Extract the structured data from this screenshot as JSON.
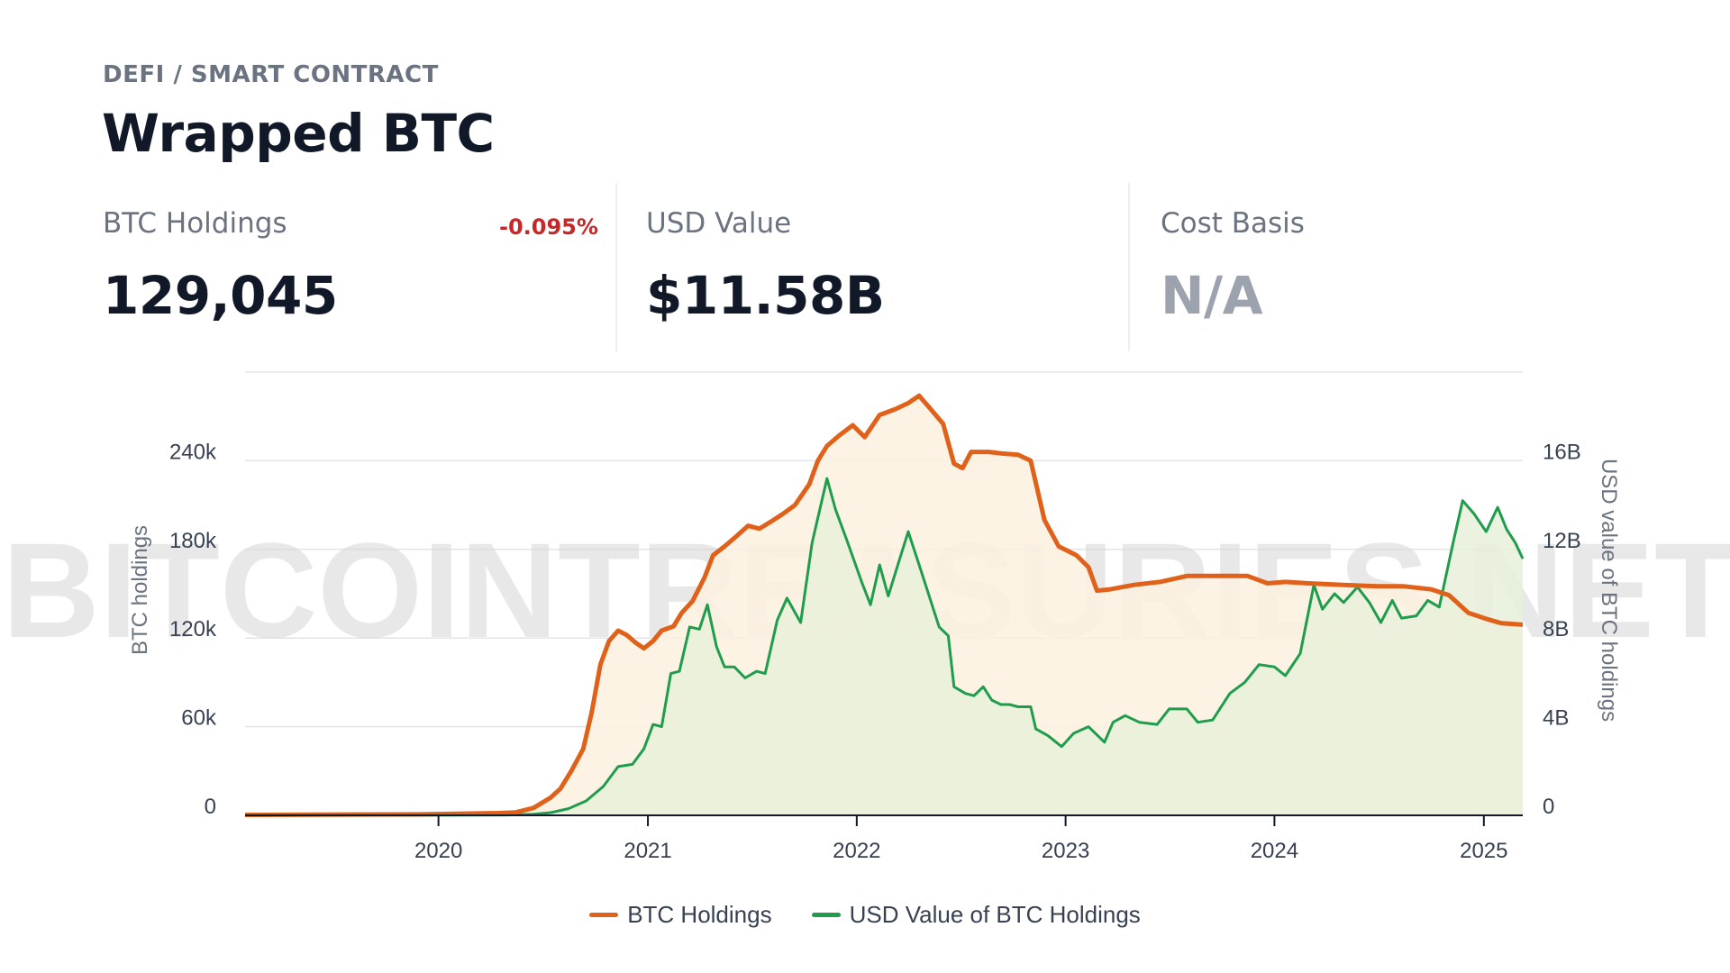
{
  "header": {
    "category": "DEFI / SMART CONTRACT",
    "title": "Wrapped BTC"
  },
  "stats": [
    {
      "label": "BTC Holdings",
      "value": "129,045",
      "change": "-0.095%",
      "change_color": "#c62828"
    },
    {
      "label": "USD Value",
      "value": "$11.58B"
    },
    {
      "label": "Cost Basis",
      "value": "N/A",
      "value_color": "#9ca3af"
    }
  ],
  "watermark": "BITCOINTREASURIES.NET",
  "colors": {
    "btc_line": "#e0611a",
    "btc_fill": "#fdf1df",
    "usd_line": "#1f9d4d",
    "usd_fill": "#e9f0db",
    "grid": "#e2e4e8",
    "axis": "#111827"
  },
  "chart_data": {
    "type": "line",
    "x_range": [
      "2019-01-28",
      "2025-03-10"
    ],
    "x_ticks": [
      "2020-01-01",
      "2021-01-01",
      "2022-01-01",
      "2023-01-01",
      "2024-01-01",
      "2025-01-01"
    ],
    "x_tick_labels": [
      "2020",
      "2021",
      "2022",
      "2023",
      "2024",
      "2025"
    ],
    "y_left": {
      "label": "BTC holdings",
      "ticks": [
        0,
        60000,
        120000,
        180000,
        240000
      ],
      "tick_labels": [
        "0",
        "60k",
        "120k",
        "180k",
        "240k"
      ],
      "range": [
        0,
        300000
      ]
    },
    "y_right": {
      "label": "USD value of BTC holdings",
      "ticks": [
        0,
        4000000000,
        8000000000,
        12000000000,
        16000000000
      ],
      "tick_labels": [
        "0",
        "4B",
        "8B",
        "12B",
        "16B"
      ],
      "range": [
        0,
        20000000000
      ]
    },
    "legend_position": "bottom-center",
    "grid": true,
    "series": [
      {
        "name": "BTC Holdings",
        "axis": "left",
        "color": "#e0611a",
        "points": [
          [
            "2019-01-28",
            300
          ],
          [
            "2019-06-01",
            500
          ],
          [
            "2019-12-01",
            700
          ],
          [
            "2020-04-15",
            1500
          ],
          [
            "2020-05-15",
            2000
          ],
          [
            "2020-06-15",
            5000
          ],
          [
            "2020-07-15",
            12000
          ],
          [
            "2020-08-01",
            18000
          ],
          [
            "2020-08-20",
            30000
          ],
          [
            "2020-09-10",
            45000
          ],
          [
            "2020-09-25",
            70000
          ],
          [
            "2020-10-10",
            102000
          ],
          [
            "2020-10-25",
            118000
          ],
          [
            "2020-11-10",
            125000
          ],
          [
            "2020-11-25",
            122000
          ],
          [
            "2020-12-10",
            117000
          ],
          [
            "2020-12-25",
            113000
          ],
          [
            "2021-01-10",
            118000
          ],
          [
            "2021-01-25",
            125000
          ],
          [
            "2021-02-15",
            128000
          ],
          [
            "2021-03-01",
            137000
          ],
          [
            "2021-03-20",
            145000
          ],
          [
            "2021-04-10",
            161000
          ],
          [
            "2021-04-25",
            176000
          ],
          [
            "2021-05-15",
            182000
          ],
          [
            "2021-06-05",
            189000
          ],
          [
            "2021-06-25",
            196000
          ],
          [
            "2021-07-15",
            194000
          ],
          [
            "2021-08-05",
            199000
          ],
          [
            "2021-08-25",
            204000
          ],
          [
            "2021-09-15",
            210000
          ],
          [
            "2021-10-10",
            224000
          ],
          [
            "2021-10-25",
            240000
          ],
          [
            "2021-11-10",
            250000
          ],
          [
            "2021-12-01",
            257000
          ],
          [
            "2021-12-25",
            264000
          ],
          [
            "2022-01-15",
            256000
          ],
          [
            "2022-02-10",
            271000
          ],
          [
            "2022-03-10",
            275000
          ],
          [
            "2022-04-01",
            279000
          ],
          [
            "2022-04-20",
            284000
          ],
          [
            "2022-05-10",
            275000
          ],
          [
            "2022-06-01",
            265000
          ],
          [
            "2022-06-20",
            238000
          ],
          [
            "2022-07-05",
            235000
          ],
          [
            "2022-07-20",
            246000
          ],
          [
            "2022-08-20",
            246000
          ],
          [
            "2022-09-10",
            245000
          ],
          [
            "2022-10-10",
            244000
          ],
          [
            "2022-11-01",
            240000
          ],
          [
            "2022-11-25",
            200000
          ],
          [
            "2022-12-20",
            182000
          ],
          [
            "2023-01-20",
            176000
          ],
          [
            "2023-02-10",
            168000
          ],
          [
            "2023-02-25",
            152000
          ],
          [
            "2023-03-20",
            153000
          ],
          [
            "2023-05-01",
            156000
          ],
          [
            "2023-06-15",
            158000
          ],
          [
            "2023-08-01",
            162000
          ],
          [
            "2023-10-01",
            162000
          ],
          [
            "2023-11-15",
            162000
          ],
          [
            "2023-12-20",
            157000
          ],
          [
            "2024-01-20",
            158000
          ],
          [
            "2024-03-01",
            157000
          ],
          [
            "2024-05-01",
            156000
          ],
          [
            "2024-07-01",
            155000
          ],
          [
            "2024-08-15",
            155000
          ],
          [
            "2024-10-01",
            153000
          ],
          [
            "2024-11-01",
            149000
          ],
          [
            "2024-12-05",
            137000
          ],
          [
            "2025-01-05",
            133000
          ],
          [
            "2025-02-01",
            130000
          ],
          [
            "2025-03-10",
            129045
          ]
        ]
      },
      {
        "name": "USD Value of BTC Holdings",
        "axis": "right",
        "color": "#1f9d4d",
        "points": [
          [
            "2019-01-28",
            5000000
          ],
          [
            "2019-12-01",
            6000000
          ],
          [
            "2020-05-01",
            15000000
          ],
          [
            "2020-06-15",
            50000000
          ],
          [
            "2020-07-15",
            120000000
          ],
          [
            "2020-08-15",
            300000000
          ],
          [
            "2020-09-15",
            650000000
          ],
          [
            "2020-10-15",
            1300000000
          ],
          [
            "2020-11-10",
            2200000000
          ],
          [
            "2020-12-05",
            2300000000
          ],
          [
            "2020-12-25",
            3000000000
          ],
          [
            "2021-01-10",
            4100000000
          ],
          [
            "2021-01-25",
            4000000000
          ],
          [
            "2021-02-10",
            6400000000
          ],
          [
            "2021-02-25",
            6500000000
          ],
          [
            "2021-03-15",
            8500000000
          ],
          [
            "2021-04-01",
            8400000000
          ],
          [
            "2021-04-15",
            9500000000
          ],
          [
            "2021-05-01",
            7600000000
          ],
          [
            "2021-05-15",
            6700000000
          ],
          [
            "2021-06-01",
            6700000000
          ],
          [
            "2021-06-20",
            6200000000
          ],
          [
            "2021-07-10",
            6500000000
          ],
          [
            "2021-07-25",
            6400000000
          ],
          [
            "2021-08-15",
            8800000000
          ],
          [
            "2021-09-01",
            9800000000
          ],
          [
            "2021-09-25",
            8700000000
          ],
          [
            "2021-10-15",
            12300000000
          ],
          [
            "2021-11-10",
            15200000000
          ],
          [
            "2021-11-25",
            13800000000
          ],
          [
            "2021-12-15",
            12400000000
          ],
          [
            "2022-01-10",
            10500000000
          ],
          [
            "2022-01-25",
            9500000000
          ],
          [
            "2022-02-10",
            11300000000
          ],
          [
            "2022-02-25",
            9900000000
          ],
          [
            "2022-03-15",
            11400000000
          ],
          [
            "2022-04-01",
            12800000000
          ],
          [
            "2022-04-20",
            11300000000
          ],
          [
            "2022-05-10",
            9700000000
          ],
          [
            "2022-05-25",
            8500000000
          ],
          [
            "2022-06-10",
            8100000000
          ],
          [
            "2022-06-20",
            5800000000
          ],
          [
            "2022-07-10",
            5500000000
          ],
          [
            "2022-07-25",
            5400000000
          ],
          [
            "2022-08-10",
            5800000000
          ],
          [
            "2022-08-25",
            5200000000
          ],
          [
            "2022-09-10",
            5000000000
          ],
          [
            "2022-09-25",
            5000000000
          ],
          [
            "2022-10-10",
            4900000000
          ],
          [
            "2022-11-01",
            4900000000
          ],
          [
            "2022-11-10",
            3900000000
          ],
          [
            "2022-12-01",
            3600000000
          ],
          [
            "2022-12-25",
            3100000000
          ],
          [
            "2023-01-15",
            3700000000
          ],
          [
            "2023-02-10",
            4000000000
          ],
          [
            "2023-03-10",
            3300000000
          ],
          [
            "2023-03-25",
            4200000000
          ],
          [
            "2023-04-15",
            4500000000
          ],
          [
            "2023-05-10",
            4200000000
          ],
          [
            "2023-06-10",
            4100000000
          ],
          [
            "2023-07-01",
            4800000000
          ],
          [
            "2023-08-01",
            4800000000
          ],
          [
            "2023-08-20",
            4200000000
          ],
          [
            "2023-09-15",
            4300000000
          ],
          [
            "2023-10-15",
            5500000000
          ],
          [
            "2023-11-10",
            6000000000
          ],
          [
            "2023-12-05",
            6800000000
          ],
          [
            "2024-01-01",
            6700000000
          ],
          [
            "2024-01-20",
            6300000000
          ],
          [
            "2024-02-15",
            7300000000
          ],
          [
            "2024-03-10",
            10400000000
          ],
          [
            "2024-03-25",
            9300000000
          ],
          [
            "2024-04-15",
            10000000000
          ],
          [
            "2024-05-01",
            9600000000
          ],
          [
            "2024-05-25",
            10300000000
          ],
          [
            "2024-06-15",
            9600000000
          ],
          [
            "2024-07-05",
            8700000000
          ],
          [
            "2024-07-25",
            9700000000
          ],
          [
            "2024-08-10",
            8900000000
          ],
          [
            "2024-09-05",
            9000000000
          ],
          [
            "2024-09-25",
            9700000000
          ],
          [
            "2024-10-15",
            9400000000
          ],
          [
            "2024-11-10",
            12500000000
          ],
          [
            "2024-11-25",
            14200000000
          ],
          [
            "2024-12-15",
            13600000000
          ],
          [
            "2025-01-05",
            12800000000
          ],
          [
            "2025-01-25",
            13900000000
          ],
          [
            "2025-02-10",
            12900000000
          ],
          [
            "2025-02-25",
            12300000000
          ],
          [
            "2025-03-10",
            11580000000
          ]
        ]
      }
    ]
  }
}
